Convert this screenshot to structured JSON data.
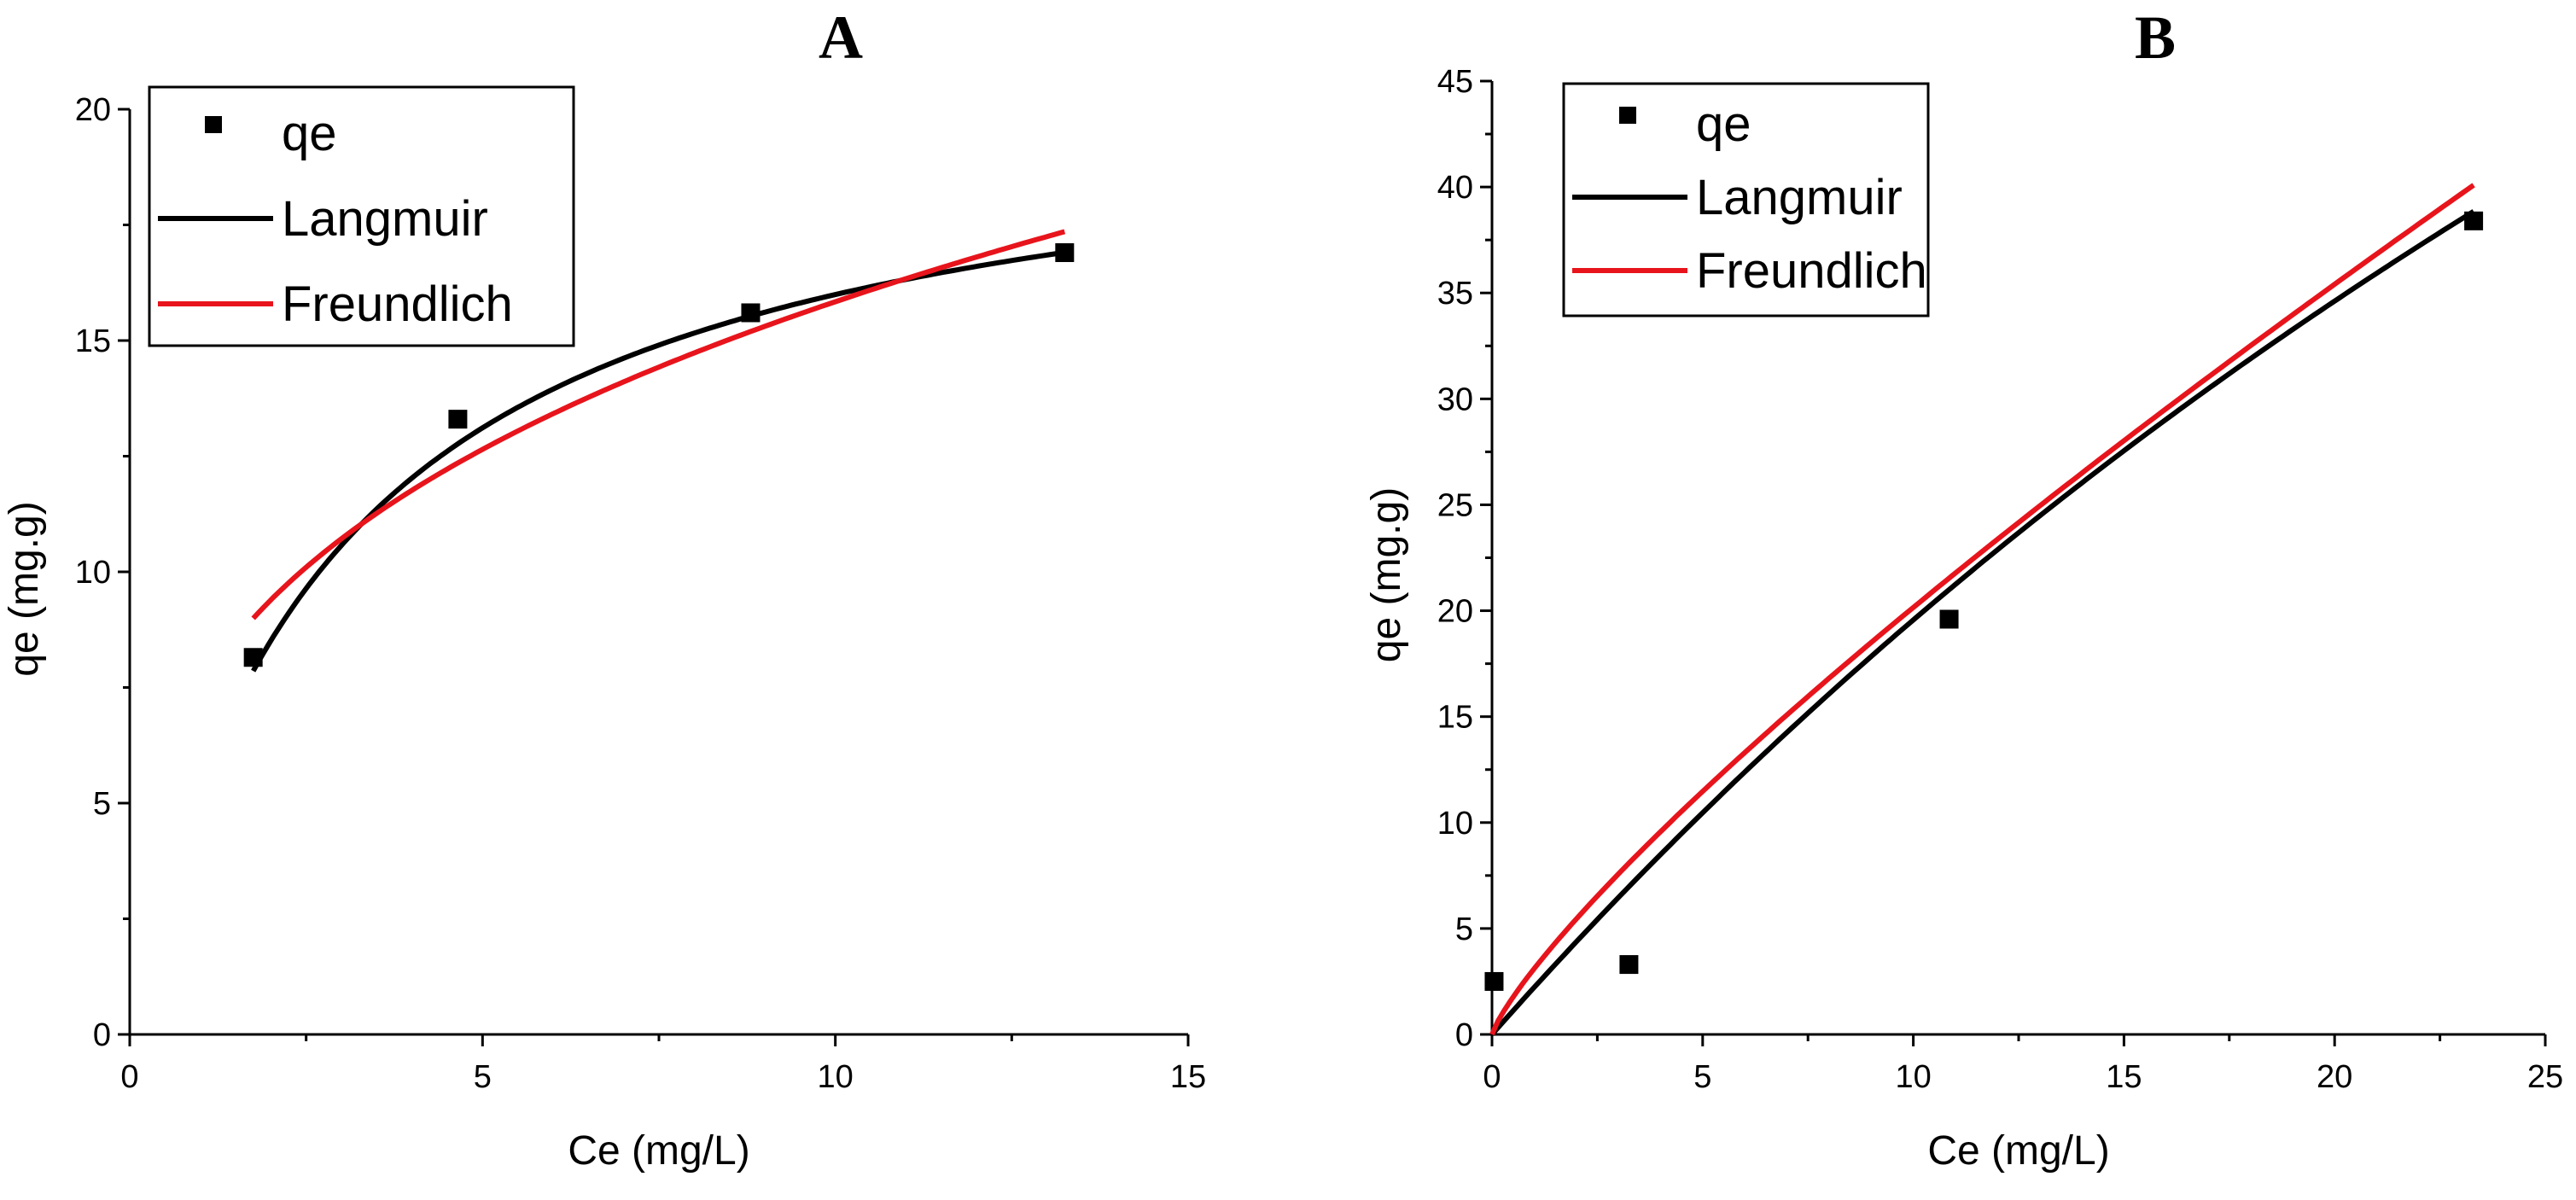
{
  "chart_data": [
    {
      "type": "scatter",
      "panel_label": "A",
      "xlabel": "Ce (mg/L)",
      "ylabel": "qe (mg.g)",
      "xlim": [
        0,
        15
      ],
      "ylim": [
        0,
        20
      ],
      "xticks": [
        0,
        5,
        10,
        15
      ],
      "yticks": [
        0,
        5,
        10,
        15,
        20
      ],
      "legend_position": "top-left",
      "series": [
        {
          "name": "qe",
          "kind": "points",
          "color": "#000000",
          "x": [
            1.75,
            4.65,
            8.8,
            13.25
          ],
          "y": [
            8.15,
            13.3,
            15.6,
            16.9
          ]
        },
        {
          "name": "Langmuir",
          "kind": "curve",
          "color": "#000000",
          "model": "langmuir",
          "qmax": 20.5,
          "kl": 0.355,
          "x_range": [
            1.75,
            13.25
          ]
        },
        {
          "name": "Freundlich",
          "kind": "curve",
          "color": "#e8141c",
          "model": "freundlich",
          "kf": 7.5,
          "n": 3.08,
          "x_range": [
            1.75,
            13.25
          ]
        }
      ]
    },
    {
      "type": "scatter",
      "panel_label": "B",
      "xlabel": "Ce (mg/L)",
      "ylabel": "qe (mg.g)",
      "xlim": [
        0,
        25
      ],
      "ylim": [
        0,
        45
      ],
      "xticks": [
        0,
        5,
        10,
        15,
        20,
        25
      ],
      "yticks": [
        0,
        5,
        10,
        15,
        20,
        25,
        30,
        35,
        40,
        45
      ],
      "legend_position": "top-left",
      "series": [
        {
          "name": "qe",
          "kind": "points",
          "color": "#000000",
          "x": [
            0.05,
            3.25,
            10.85,
            23.3
          ],
          "y": [
            2.5,
            3.3,
            19.6,
            38.4
          ]
        },
        {
          "name": "Langmuir",
          "kind": "curve",
          "color": "#000000",
          "model": "langmuir",
          "qmax": 150,
          "kl": 0.015,
          "x_range": [
            0,
            23.3
          ]
        },
        {
          "name": "Freundlich",
          "kind": "curve",
          "color": "#e8141c",
          "model": "freundlich",
          "kf": 3.1,
          "n": 1.23,
          "x_range": [
            0,
            23.3
          ]
        }
      ]
    }
  ]
}
